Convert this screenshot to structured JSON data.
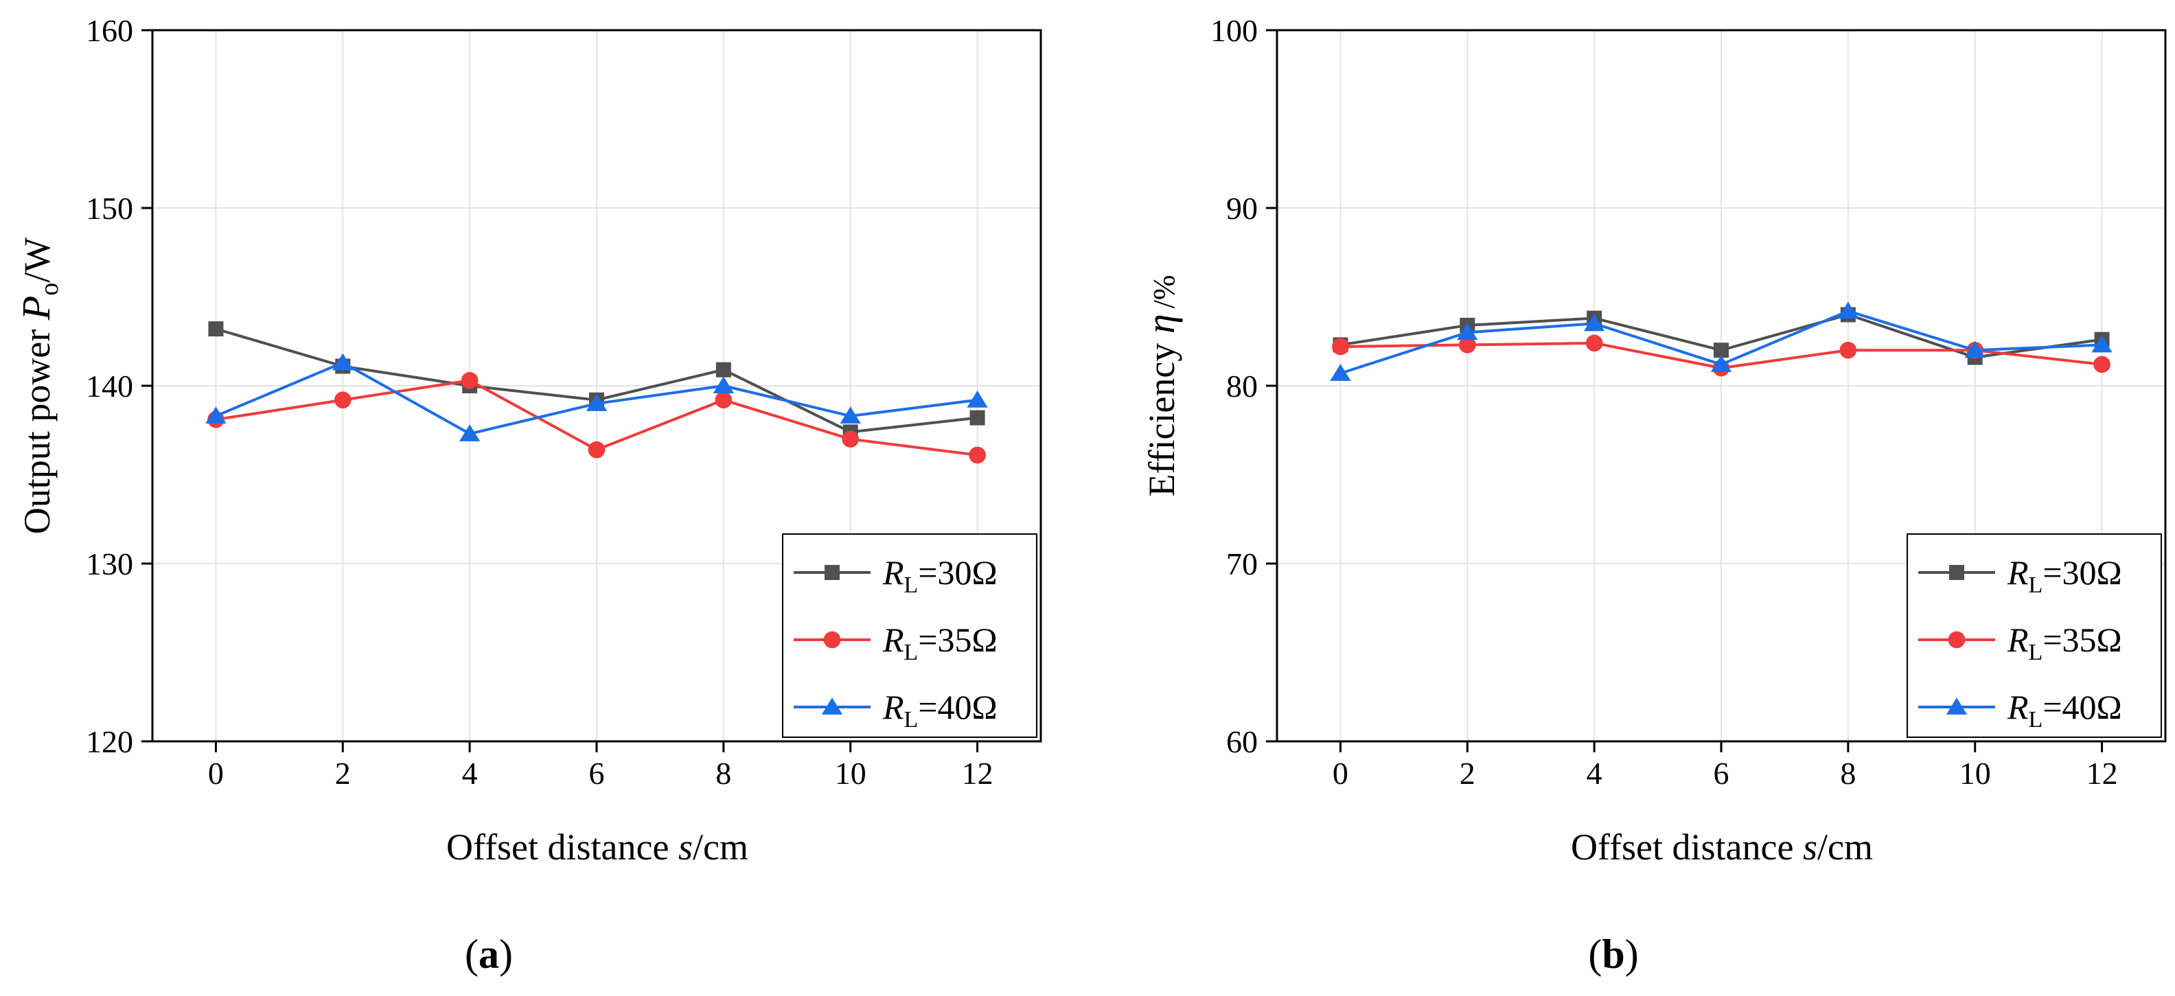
{
  "chart_data": [
    {
      "type": "line",
      "panel_label": "a",
      "xlabel_prefix": "Offset distance ",
      "xlabel_var": "s",
      "xlabel_unit": "/cm",
      "ylabel_prefix": "Output power ",
      "ylabel_var": "P",
      "ylabel_sub": "o",
      "ylabel_unit": "/W",
      "x": [
        0,
        2,
        4,
        6,
        8,
        10,
        12
      ],
      "xlim": [
        -1,
        13
      ],
      "ylim": [
        120,
        160
      ],
      "yticks": [
        120,
        130,
        140,
        150,
        160
      ],
      "grid": true,
      "legend_position": "bottom-right",
      "series": [
        {
          "name": "R_L=30Ω",
          "var": "R",
          "sub": "L",
          "value": "=30Ω",
          "color": "#505050",
          "marker": "square",
          "values": [
            143.2,
            141.1,
            140.0,
            139.2,
            140.9,
            137.4,
            138.2
          ]
        },
        {
          "name": "R_L=35Ω",
          "var": "R",
          "sub": "L",
          "value": "=35Ω",
          "color": "#ef3b3b",
          "marker": "circle",
          "values": [
            138.1,
            139.2,
            140.3,
            136.4,
            139.2,
            137.0,
            136.1
          ]
        },
        {
          "name": "R_L=40Ω",
          "var": "R",
          "sub": "L",
          "value": "=40Ω",
          "color": "#1c6ee8",
          "marker": "triangle",
          "values": [
            138.3,
            141.3,
            137.3,
            139.0,
            140.0,
            138.3,
            139.2
          ]
        }
      ]
    },
    {
      "type": "line",
      "panel_label": "b",
      "xlabel_prefix": "Offset distance ",
      "xlabel_var": "s",
      "xlabel_unit": "/cm",
      "ylabel_prefix": "Efficiency ",
      "ylabel_var": "η",
      "ylabel_sub": "",
      "ylabel_unit": "/%",
      "x": [
        0,
        2,
        4,
        6,
        8,
        10,
        12
      ],
      "xlim": [
        -1,
        13
      ],
      "ylim": [
        60,
        100
      ],
      "yticks": [
        60,
        70,
        80,
        90,
        100
      ],
      "grid": true,
      "legend_position": "bottom-right",
      "series": [
        {
          "name": "R_L=30Ω",
          "var": "R",
          "sub": "L",
          "value": "=30Ω",
          "color": "#505050",
          "marker": "square",
          "values": [
            82.3,
            83.4,
            83.8,
            82.0,
            84.0,
            81.6,
            82.6
          ]
        },
        {
          "name": "R_L=35Ω",
          "var": "R",
          "sub": "L",
          "value": "=35Ω",
          "color": "#ef3b3b",
          "marker": "circle",
          "values": [
            82.2,
            82.3,
            82.4,
            81.0,
            82.0,
            82.0,
            81.2
          ]
        },
        {
          "name": "R_L=40Ω",
          "var": "R",
          "sub": "L",
          "value": "=40Ω",
          "color": "#1c6ee8",
          "marker": "triangle",
          "values": [
            80.7,
            83.0,
            83.5,
            81.2,
            84.2,
            82.0,
            82.3
          ]
        }
      ]
    }
  ]
}
